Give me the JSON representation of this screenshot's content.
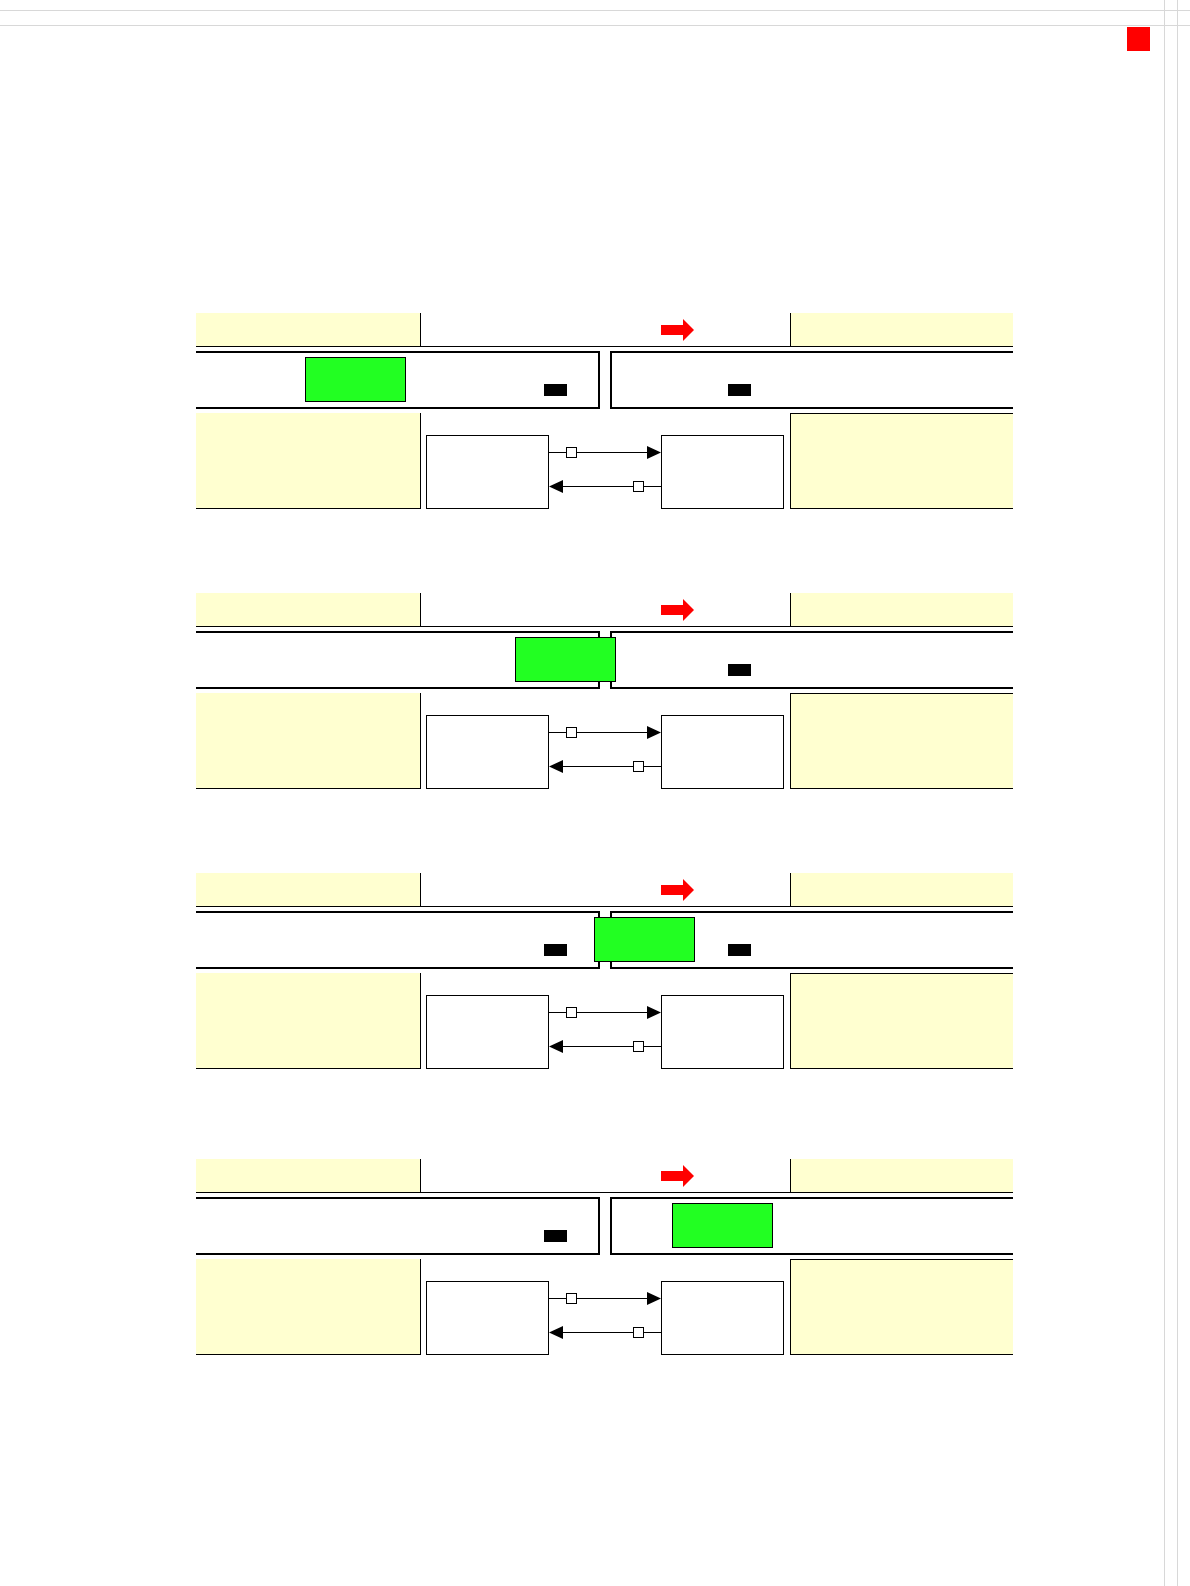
{
  "colors": {
    "zone_fill": "#ffffd0",
    "highlight": "#22ff22",
    "arrow": "#ff0000",
    "marker": "#000000",
    "corner_marker": "#ff0000"
  },
  "icons": {
    "direction": "right-arrow-icon",
    "corner": "red-square-icon"
  },
  "panels": [
    {
      "highlight_state": "left-lane-start"
    },
    {
      "highlight_state": "left-lane-end"
    },
    {
      "highlight_state": "gap"
    },
    {
      "highlight_state": "right-lane-start"
    }
  ]
}
